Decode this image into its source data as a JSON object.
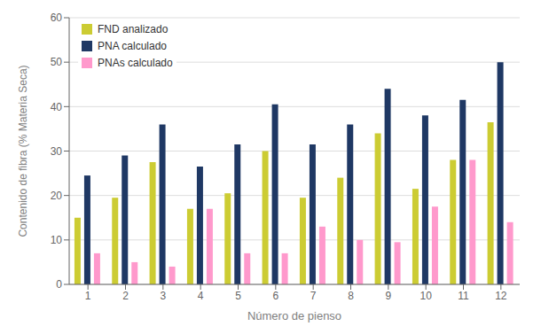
{
  "chart_data": {
    "type": "bar",
    "categories": [
      "1",
      "2",
      "3",
      "4",
      "5",
      "6",
      "7",
      "8",
      "9",
      "10",
      "11",
      "12"
    ],
    "series": [
      {
        "name": "FND analizado",
        "color": "#cccc33",
        "values": [
          15,
          19.5,
          27.5,
          17,
          20.5,
          30,
          19.5,
          24,
          34,
          21.5,
          28,
          36.5
        ]
      },
      {
        "name": "PNA calculado",
        "color": "#1f3864",
        "values": [
          24.5,
          29,
          36,
          26.5,
          31.5,
          40.5,
          31.5,
          36,
          44,
          38,
          41.5,
          50
        ]
      },
      {
        "name": "PNAs calculado",
        "color": "#ff99cc",
        "values": [
          7,
          5,
          4,
          17,
          7,
          7,
          13,
          10,
          9.5,
          17.5,
          28,
          14
        ]
      }
    ],
    "xlabel": "Número de pienso",
    "ylabel": "Contenido de fibra (% Materia Seca)",
    "ylim": [
      0,
      60
    ],
    "yticks": [
      0,
      10,
      20,
      30,
      40,
      50,
      60
    ],
    "grid": true,
    "legend": "upper left"
  }
}
